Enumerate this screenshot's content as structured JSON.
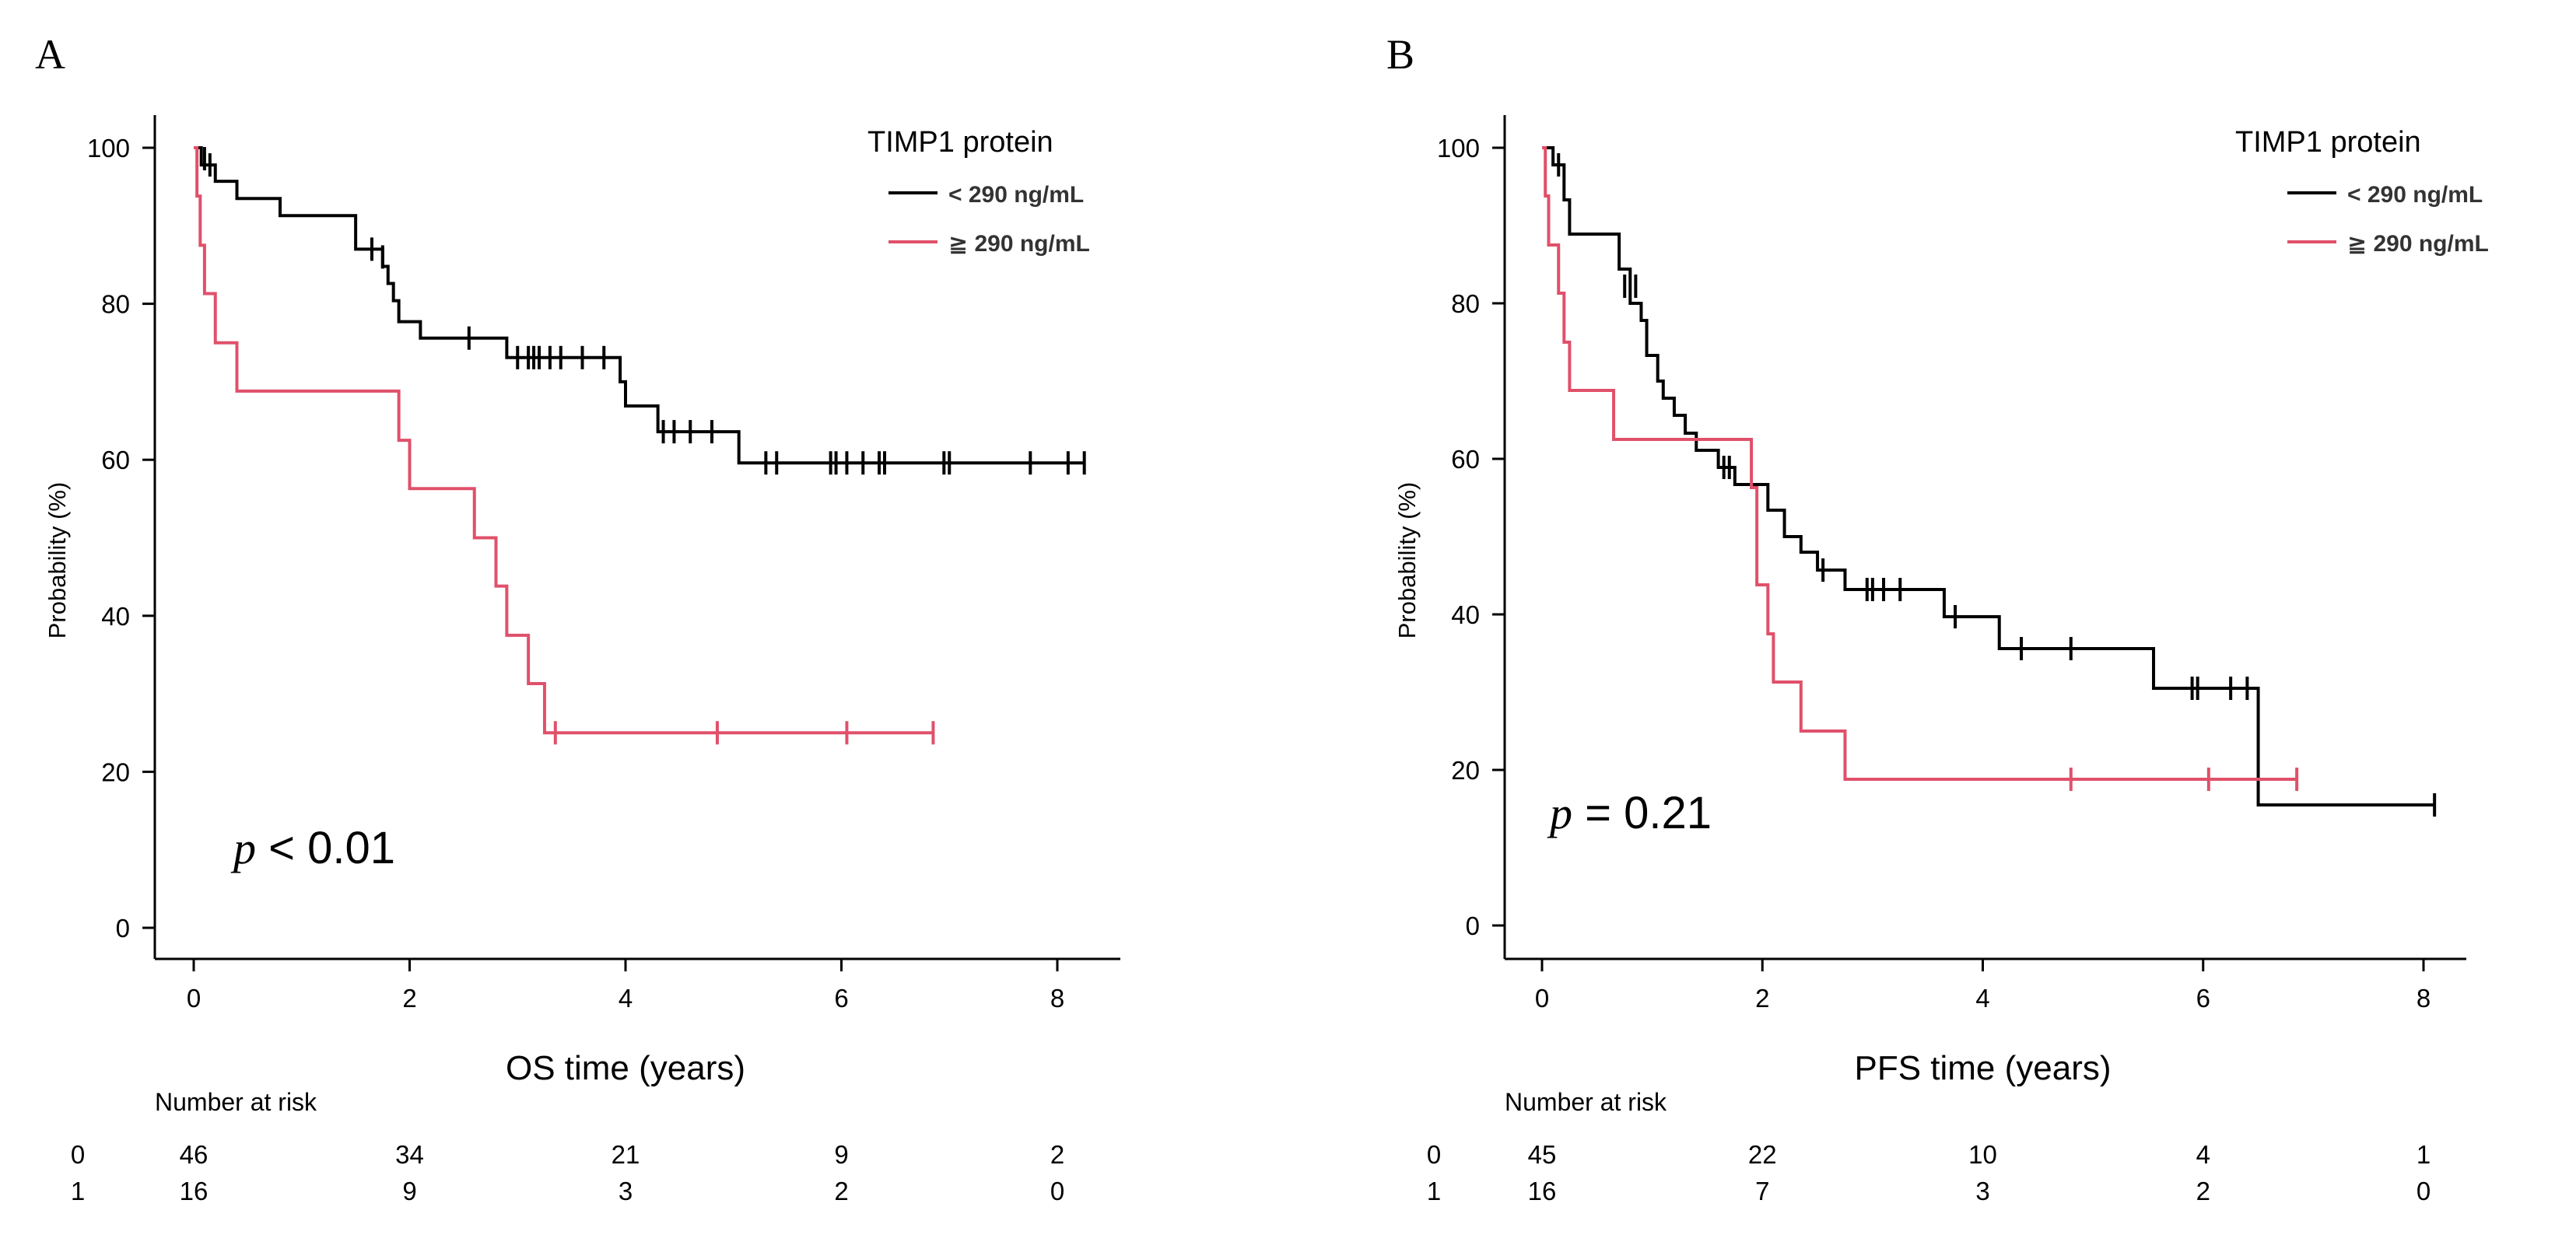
{
  "colors": {
    "group0": "#000000",
    "group1": "#e0506a",
    "axis": "#000000"
  },
  "chart_data": [
    {
      "type": "line",
      "subtype": "kaplan-meier",
      "panel_label": "A",
      "xlabel": "OS time (years)",
      "ylabel": "Probability (%)",
      "xlim": [
        0,
        8.5
      ],
      "ylim": [
        0,
        100
      ],
      "xticks": [
        0,
        2,
        4,
        6,
        8
      ],
      "yticks": [
        0,
        20,
        40,
        60,
        80,
        100
      ],
      "legend": {
        "title": "TIMP1 protein",
        "position": "top-right",
        "entries": [
          "< 290 ng/mL",
          "≧ 290 ng/mL"
        ]
      },
      "pvalue": {
        "symbol": "p",
        "rest": " < 0.01"
      },
      "risk_table": {
        "title": "Number at risk",
        "rows": [
          {
            "label": "0",
            "values": [
              "46",
              "34",
              "21",
              "9",
              "2"
            ]
          },
          {
            "label": "1",
            "values": [
              "16",
              "9",
              "3",
              "2",
              "0"
            ]
          }
        ]
      },
      "series": [
        {
          "name": "< 290 ng/mL",
          "color": "#000000",
          "steps": [
            [
              0,
              100
            ],
            [
              0.07,
              97.8
            ],
            [
              0.2,
              95.7
            ],
            [
              0.4,
              93.5
            ],
            [
              0.8,
              91.3
            ],
            [
              1.5,
              87
            ],
            [
              1.75,
              84.8
            ],
            [
              1.8,
              82.6
            ],
            [
              1.85,
              80.4
            ],
            [
              1.9,
              77.7
            ],
            [
              2.1,
              75.6
            ],
            [
              2.9,
              73.1
            ],
            [
              3.95,
              70
            ],
            [
              4.0,
              66.9
            ],
            [
              4.3,
              63.6
            ],
            [
              5.05,
              59.6
            ],
            [
              8.25,
              59.6
            ]
          ],
          "censors": [
            [
              0.1,
              98.6
            ],
            [
              0.15,
              97.8
            ],
            [
              1.65,
              87
            ],
            [
              1.75,
              86
            ],
            [
              2.55,
              75.6
            ],
            [
              3.0,
              73.1
            ],
            [
              3.1,
              73.1
            ],
            [
              3.15,
              73.1
            ],
            [
              3.2,
              73.1
            ],
            [
              3.3,
              73.1
            ],
            [
              3.4,
              73.1
            ],
            [
              3.6,
              73.1
            ],
            [
              3.8,
              73.1
            ],
            [
              4.35,
              63.6
            ],
            [
              4.45,
              63.6
            ],
            [
              4.6,
              63.6
            ],
            [
              4.8,
              63.6
            ],
            [
              5.3,
              59.6
            ],
            [
              5.4,
              59.6
            ],
            [
              5.9,
              59.6
            ],
            [
              5.95,
              59.6
            ],
            [
              6.05,
              59.6
            ],
            [
              6.2,
              59.6
            ],
            [
              6.35,
              59.6
            ],
            [
              6.4,
              59.6
            ],
            [
              6.95,
              59.6
            ],
            [
              7.0,
              59.6
            ],
            [
              7.75,
              59.6
            ],
            [
              8.1,
              59.6
            ],
            [
              8.25,
              59.6
            ]
          ]
        },
        {
          "name": "≧ 290 ng/mL",
          "color": "#e0506a",
          "steps": [
            [
              0,
              100
            ],
            [
              0.03,
              93.8
            ],
            [
              0.06,
              87.5
            ],
            [
              0.1,
              81.3
            ],
            [
              0.2,
              75
            ],
            [
              0.4,
              68.8
            ],
            [
              1.9,
              62.5
            ],
            [
              2.0,
              56.3
            ],
            [
              2.6,
              50
            ],
            [
              2.8,
              43.8
            ],
            [
              2.9,
              37.5
            ],
            [
              3.1,
              31.3
            ],
            [
              3.25,
              25
            ],
            [
              6.85,
              25
            ]
          ],
          "censors": [
            [
              3.35,
              25
            ],
            [
              4.85,
              25
            ],
            [
              6.05,
              25
            ],
            [
              6.85,
              25
            ]
          ]
        }
      ]
    },
    {
      "type": "line",
      "subtype": "kaplan-meier",
      "panel_label": "B",
      "xlabel": "PFS time (years)",
      "ylabel": "Probability (%)",
      "xlim": [
        0,
        8.5
      ],
      "ylim": [
        0,
        100
      ],
      "xticks": [
        0,
        2,
        4,
        6,
        8
      ],
      "yticks": [
        0,
        20,
        40,
        60,
        80,
        100
      ],
      "legend": {
        "title": "TIMP1 protein",
        "position": "top-right",
        "entries": [
          "< 290 ng/mL",
          "≧ 290 ng/mL"
        ]
      },
      "pvalue": {
        "symbol": "p",
        "rest": " = 0.21"
      },
      "risk_table": {
        "title": "Number at risk",
        "rows": [
          {
            "label": "0",
            "values": [
              "45",
              "22",
              "10",
              "4",
              "1"
            ]
          },
          {
            "label": "1",
            "values": [
              "16",
              "7",
              "3",
              "2",
              "0"
            ]
          }
        ]
      },
      "series": [
        {
          "name": "< 290 ng/mL",
          "color": "#000000",
          "steps": [
            [
              0,
              100
            ],
            [
              0.1,
              97.8
            ],
            [
              0.2,
              93.3
            ],
            [
              0.25,
              88.9
            ],
            [
              0.7,
              84.4
            ],
            [
              0.8,
              80
            ],
            [
              0.9,
              77.8
            ],
            [
              0.95,
              73.3
            ],
            [
              1.05,
              70
            ],
            [
              1.1,
              67.8
            ],
            [
              1.2,
              65.6
            ],
            [
              1.3,
              63.3
            ],
            [
              1.4,
              61.1
            ],
            [
              1.6,
              58.9
            ],
            [
              1.75,
              56.7
            ],
            [
              2.05,
              53.4
            ],
            [
              2.2,
              50
            ],
            [
              2.35,
              48
            ],
            [
              2.5,
              45.7
            ],
            [
              2.75,
              43.2
            ],
            [
              3.65,
              39.7
            ],
            [
              4.15,
              35.6
            ],
            [
              5.55,
              30.5
            ],
            [
              6.5,
              15.5
            ],
            [
              8.1,
              15.5
            ]
          ],
          "censors": [
            [
              0.15,
              97.8
            ],
            [
              0.75,
              82.2
            ],
            [
              0.85,
              82.2
            ],
            [
              1.65,
              58.9
            ],
            [
              1.7,
              58.9
            ],
            [
              2.55,
              45.7
            ],
            [
              2.95,
              43.2
            ],
            [
              3.0,
              43.2
            ],
            [
              3.1,
              43.2
            ],
            [
              3.25,
              43.2
            ],
            [
              3.75,
              39.7
            ],
            [
              4.35,
              35.6
            ],
            [
              4.8,
              35.6
            ],
            [
              5.9,
              30.5
            ],
            [
              5.95,
              30.5
            ],
            [
              6.25,
              30.5
            ],
            [
              6.4,
              30.5
            ],
            [
              8.1,
              15.5
            ]
          ]
        },
        {
          "name": "≧ 290 ng/mL",
          "color": "#e0506a",
          "steps": [
            [
              0,
              100
            ],
            [
              0.03,
              93.8
            ],
            [
              0.06,
              87.5
            ],
            [
              0.15,
              81.3
            ],
            [
              0.2,
              75
            ],
            [
              0.25,
              68.8
            ],
            [
              0.65,
              62.5
            ],
            [
              1.9,
              56.3
            ],
            [
              1.95,
              43.8
            ],
            [
              2.05,
              37.5
            ],
            [
              2.1,
              31.3
            ],
            [
              2.35,
              25
            ],
            [
              2.75,
              18.8
            ],
            [
              6.85,
              18.8
            ]
          ],
          "censors": [
            [
              4.8,
              18.8
            ],
            [
              6.05,
              18.8
            ],
            [
              6.85,
              18.8
            ]
          ]
        }
      ]
    }
  ]
}
